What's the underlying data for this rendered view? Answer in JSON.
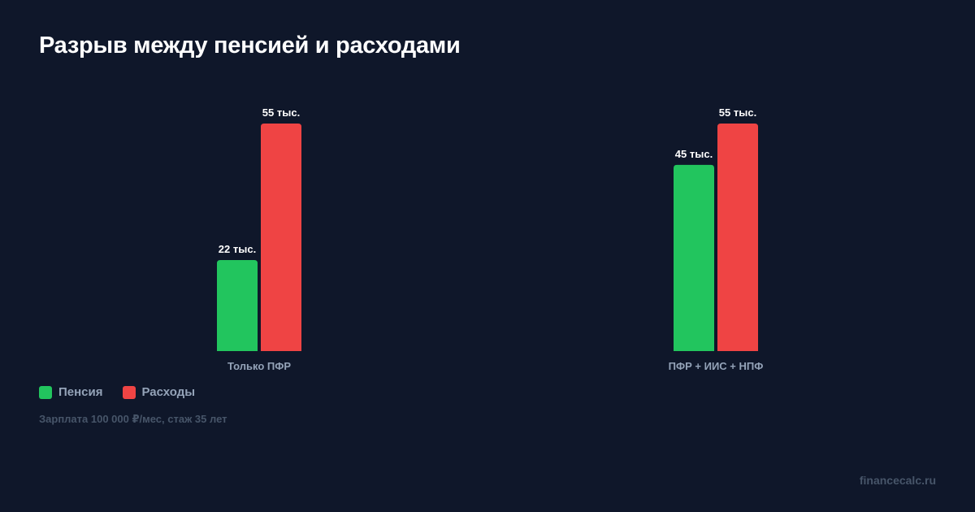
{
  "title": "Разрыв между пенсией и расходами",
  "chart_data": {
    "type": "bar",
    "title": "Разрыв между пенсией и расходами",
    "categories": [
      "Только ПФР",
      "ПФР + ИИС + НПФ"
    ],
    "series": [
      {
        "name": "Пенсия",
        "color": "#22c55e",
        "values": [
          22,
          45
        ],
        "labels": [
          "22 тыс.",
          "45 тыс."
        ]
      },
      {
        "name": "Расходы",
        "color": "#ef4444",
        "values": [
          55,
          55
        ],
        "labels": [
          "55 тыс.",
          "55 тыс."
        ]
      }
    ],
    "unit": "тыс.",
    "ylim": [
      0,
      55
    ],
    "grid": false,
    "legend": "bottom-left"
  },
  "legend": [
    {
      "label": "Пенсия",
      "color": "#22c55e"
    },
    {
      "label": "Расходы",
      "color": "#ef4444"
    }
  ],
  "note": "Зарплата 100 000 ₽/мес, стаж 35 лет",
  "brand": "financecalc.ru"
}
